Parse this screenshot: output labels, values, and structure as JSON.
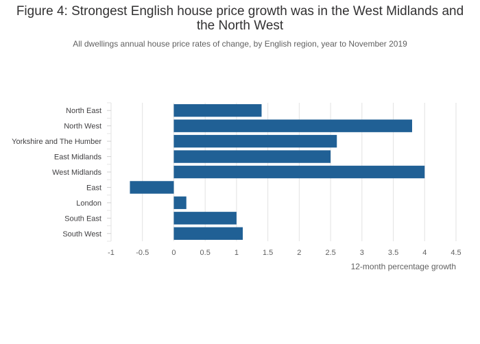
{
  "chart_data": {
    "type": "bar",
    "orientation": "horizontal",
    "title": "Figure 4: Strongest English house price growth was in the West Midlands and the North West",
    "subtitle": "All dwellings annual house price rates of change, by English region, year to November 2019",
    "xlabel": "12-month percentage growth",
    "ylabel": "",
    "categories": [
      "North East",
      "North West",
      "Yorkshire and The Humber",
      "East Midlands",
      "West Midlands",
      "East",
      "London",
      "South East",
      "South West"
    ],
    "values": [
      1.4,
      3.8,
      2.6,
      2.5,
      4.0,
      -0.7,
      0.2,
      1.0,
      1.1
    ],
    "xlim": [
      -1,
      4.5
    ],
    "xticks": [
      "-1",
      "-0.5",
      "0",
      "0.5",
      "1",
      "1.5",
      "2",
      "2.5",
      "3",
      "3.5",
      "4",
      "4.5"
    ],
    "grid": true,
    "bar_color": "#206095",
    "grid_color": "#e2e2e2"
  }
}
